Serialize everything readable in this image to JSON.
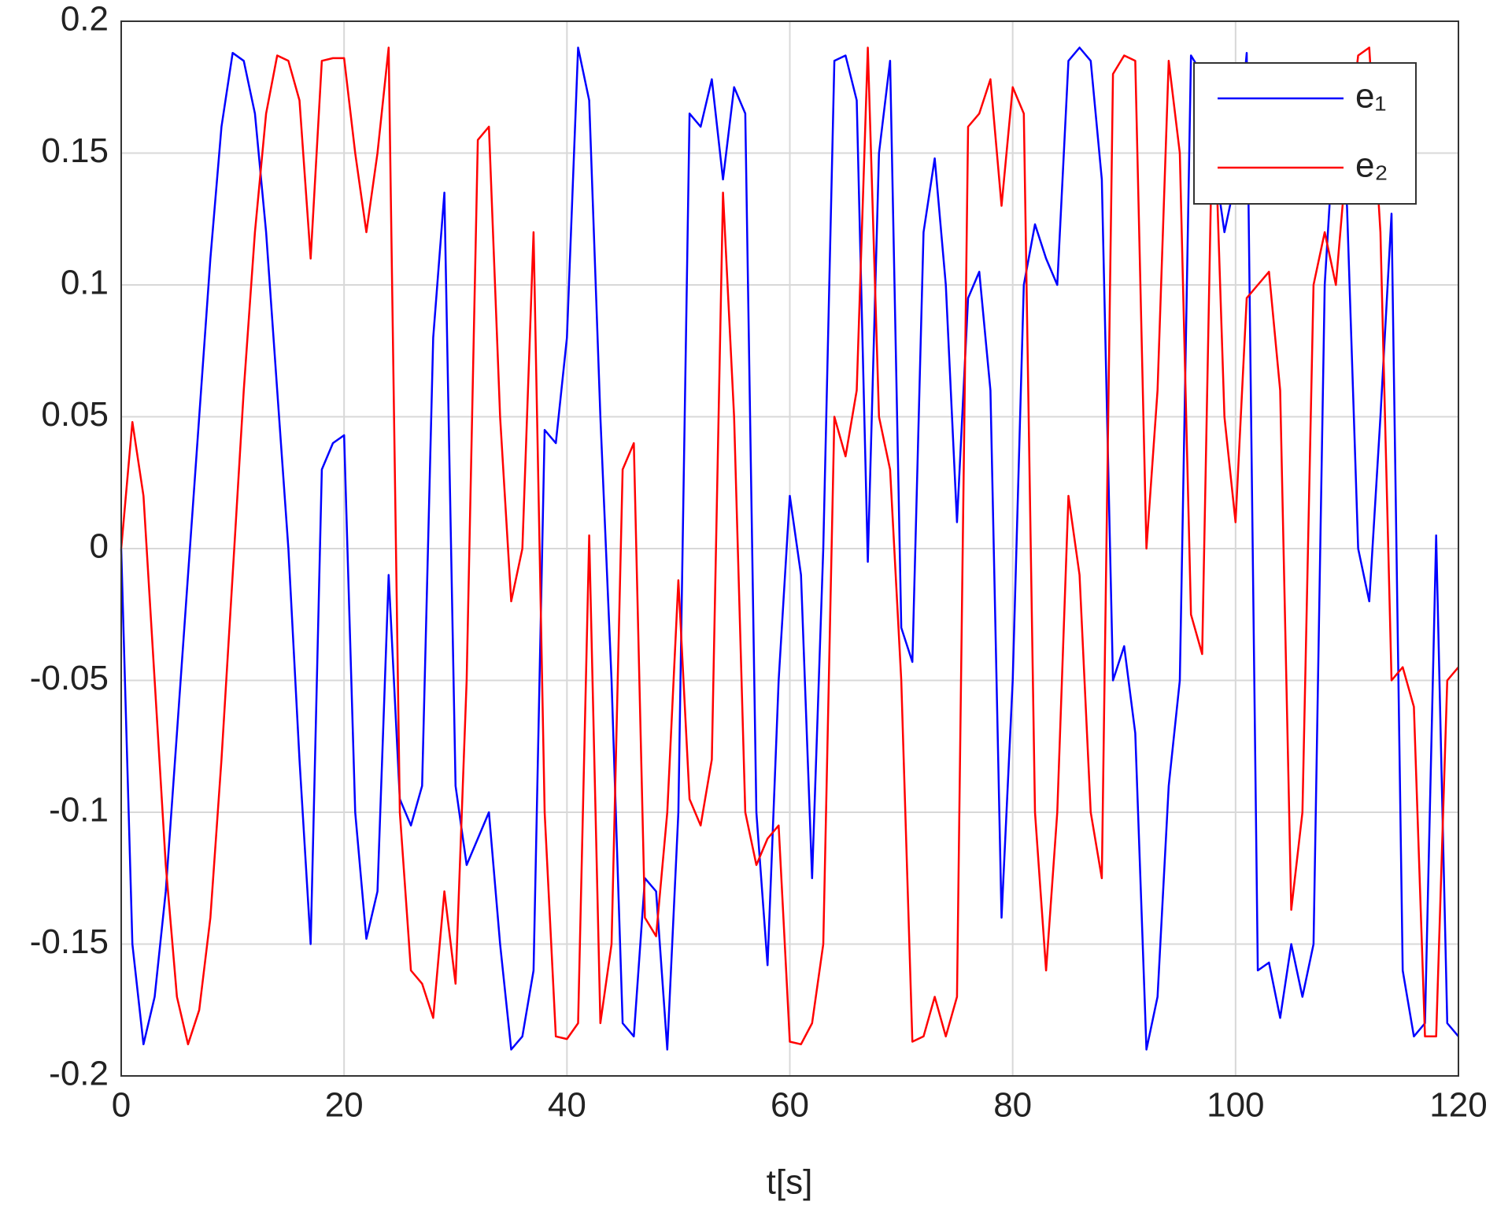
{
  "chart_data": {
    "type": "line",
    "x_label": "t[s]",
    "x": [
      0,
      1,
      2,
      3,
      4,
      5,
      6,
      7,
      8,
      9,
      10,
      11,
      12,
      13,
      14,
      15,
      16,
      17,
      18,
      19,
      20,
      21,
      22,
      23,
      24,
      25,
      26,
      27,
      28,
      29,
      30,
      31,
      32,
      33,
      34,
      35,
      36,
      37,
      38,
      39,
      40,
      41,
      42,
      43,
      44,
      45,
      46,
      47,
      48,
      49,
      50,
      51,
      52,
      53,
      54,
      55,
      56,
      57,
      58,
      59,
      60,
      61,
      62,
      63,
      64,
      65,
      66,
      67,
      68,
      69,
      70,
      71,
      72,
      73,
      74,
      75,
      76,
      77,
      78,
      79,
      80,
      81,
      82,
      83,
      84,
      85,
      86,
      87,
      88,
      89,
      90,
      91,
      92,
      93,
      94,
      95,
      96,
      97,
      98,
      99,
      100,
      101,
      102,
      103,
      104,
      105,
      106,
      107,
      108,
      109,
      110,
      111,
      112,
      113,
      114,
      115,
      116,
      117,
      118,
      119,
      120
    ],
    "series": [
      {
        "name": "e₁",
        "color": "#0000ff",
        "values": [
          0,
          -0.15,
          -0.188,
          -0.17,
          -0.13,
          -0.07,
          -0.01,
          0.05,
          0.11,
          0.16,
          0.188,
          0.185,
          0.165,
          0.12,
          0.06,
          0,
          -0.08,
          -0.15,
          0.03,
          0.04,
          0.043,
          -0.1,
          -0.148,
          -0.13,
          -0.01,
          -0.095,
          -0.105,
          -0.09,
          0.08,
          0.135,
          -0.09,
          -0.12,
          -0.11,
          -0.1,
          -0.15,
          -0.19,
          -0.185,
          -0.16,
          0.045,
          0.04,
          0.08,
          0.19,
          0.17,
          0.05,
          -0.05,
          -0.18,
          -0.185,
          -0.125,
          -0.13,
          -0.19,
          -0.1,
          0.165,
          0.16,
          0.178,
          0.14,
          0.175,
          0.165,
          -0.1,
          -0.158,
          -0.05,
          0.02,
          -0.01,
          -0.125,
          0,
          0.185,
          0.187,
          0.17,
          -0.005,
          0.15,
          0.185,
          -0.03,
          -0.043,
          0.12,
          0.148,
          0.1,
          0.01,
          0.095,
          0.105,
          0.06,
          -0.14,
          -0.05,
          0.1,
          0.123,
          0.11,
          0.1,
          0.185,
          0.19,
          0.185,
          0.14,
          -0.05,
          -0.037,
          -0.07,
          -0.19,
          -0.17,
          -0.09,
          -0.05,
          0.187,
          0.18,
          0.15,
          0.12,
          0.14,
          0.188,
          -0.16,
          -0.157,
          -0.178,
          -0.15,
          -0.17,
          -0.15,
          0.1,
          0.17,
          0.13,
          0,
          -0.02,
          0.05,
          0.127,
          -0.16,
          -0.185,
          -0.18,
          0.005,
          -0.18,
          -0.185
        ]
      },
      {
        "name": "e₂",
        "color": "#ff0000",
        "values": [
          0,
          0.048,
          0.02,
          -0.05,
          -0.12,
          -0.17,
          -0.188,
          -0.175,
          -0.14,
          -0.08,
          -0.01,
          0.06,
          0.12,
          0.165,
          0.187,
          0.185,
          0.17,
          0.11,
          0.185,
          0.186,
          0.186,
          0.15,
          0.12,
          0.15,
          0.19,
          -0.1,
          -0.16,
          -0.165,
          -0.178,
          -0.13,
          -0.165,
          -0.05,
          0.155,
          0.16,
          0.05,
          -0.02,
          0,
          0.12,
          -0.1,
          -0.185,
          -0.186,
          -0.18,
          0.005,
          -0.18,
          -0.15,
          0.03,
          0.04,
          -0.14,
          -0.147,
          -0.1,
          -0.012,
          -0.095,
          -0.105,
          -0.08,
          0.135,
          0.05,
          -0.1,
          -0.12,
          -0.11,
          -0.105,
          -0.187,
          -0.188,
          -0.18,
          -0.15,
          0.05,
          0.035,
          0.06,
          0.19,
          0.05,
          0.03,
          -0.05,
          -0.187,
          -0.185,
          -0.17,
          -0.185,
          -0.17,
          0.16,
          0.165,
          0.178,
          0.13,
          0.175,
          0.165,
          -0.1,
          -0.16,
          -0.1,
          0.02,
          -0.01,
          -0.1,
          -0.125,
          0.18,
          0.187,
          0.185,
          0,
          0.06,
          0.185,
          0.15,
          -0.025,
          -0.04,
          0.18,
          0.05,
          0.01,
          0.095,
          0.1,
          0.105,
          0.06,
          -0.137,
          -0.1,
          0.1,
          0.12,
          0.1,
          0.15,
          0.187,
          0.19,
          0.12,
          -0.05,
          -0.045,
          -0.06,
          -0.185,
          -0.185,
          -0.05,
          -0.045
        ]
      }
    ],
    "xlim": [
      0,
      120
    ],
    "xticks": [
      0,
      20,
      40,
      60,
      80,
      100,
      120
    ],
    "ylim": [
      -0.2,
      0.2
    ],
    "yticks": [
      -0.2,
      -0.15,
      -0.1,
      -0.05,
      0,
      0.05,
      0.1,
      0.15,
      0.2
    ],
    "grid": true,
    "legend": "upper right"
  }
}
